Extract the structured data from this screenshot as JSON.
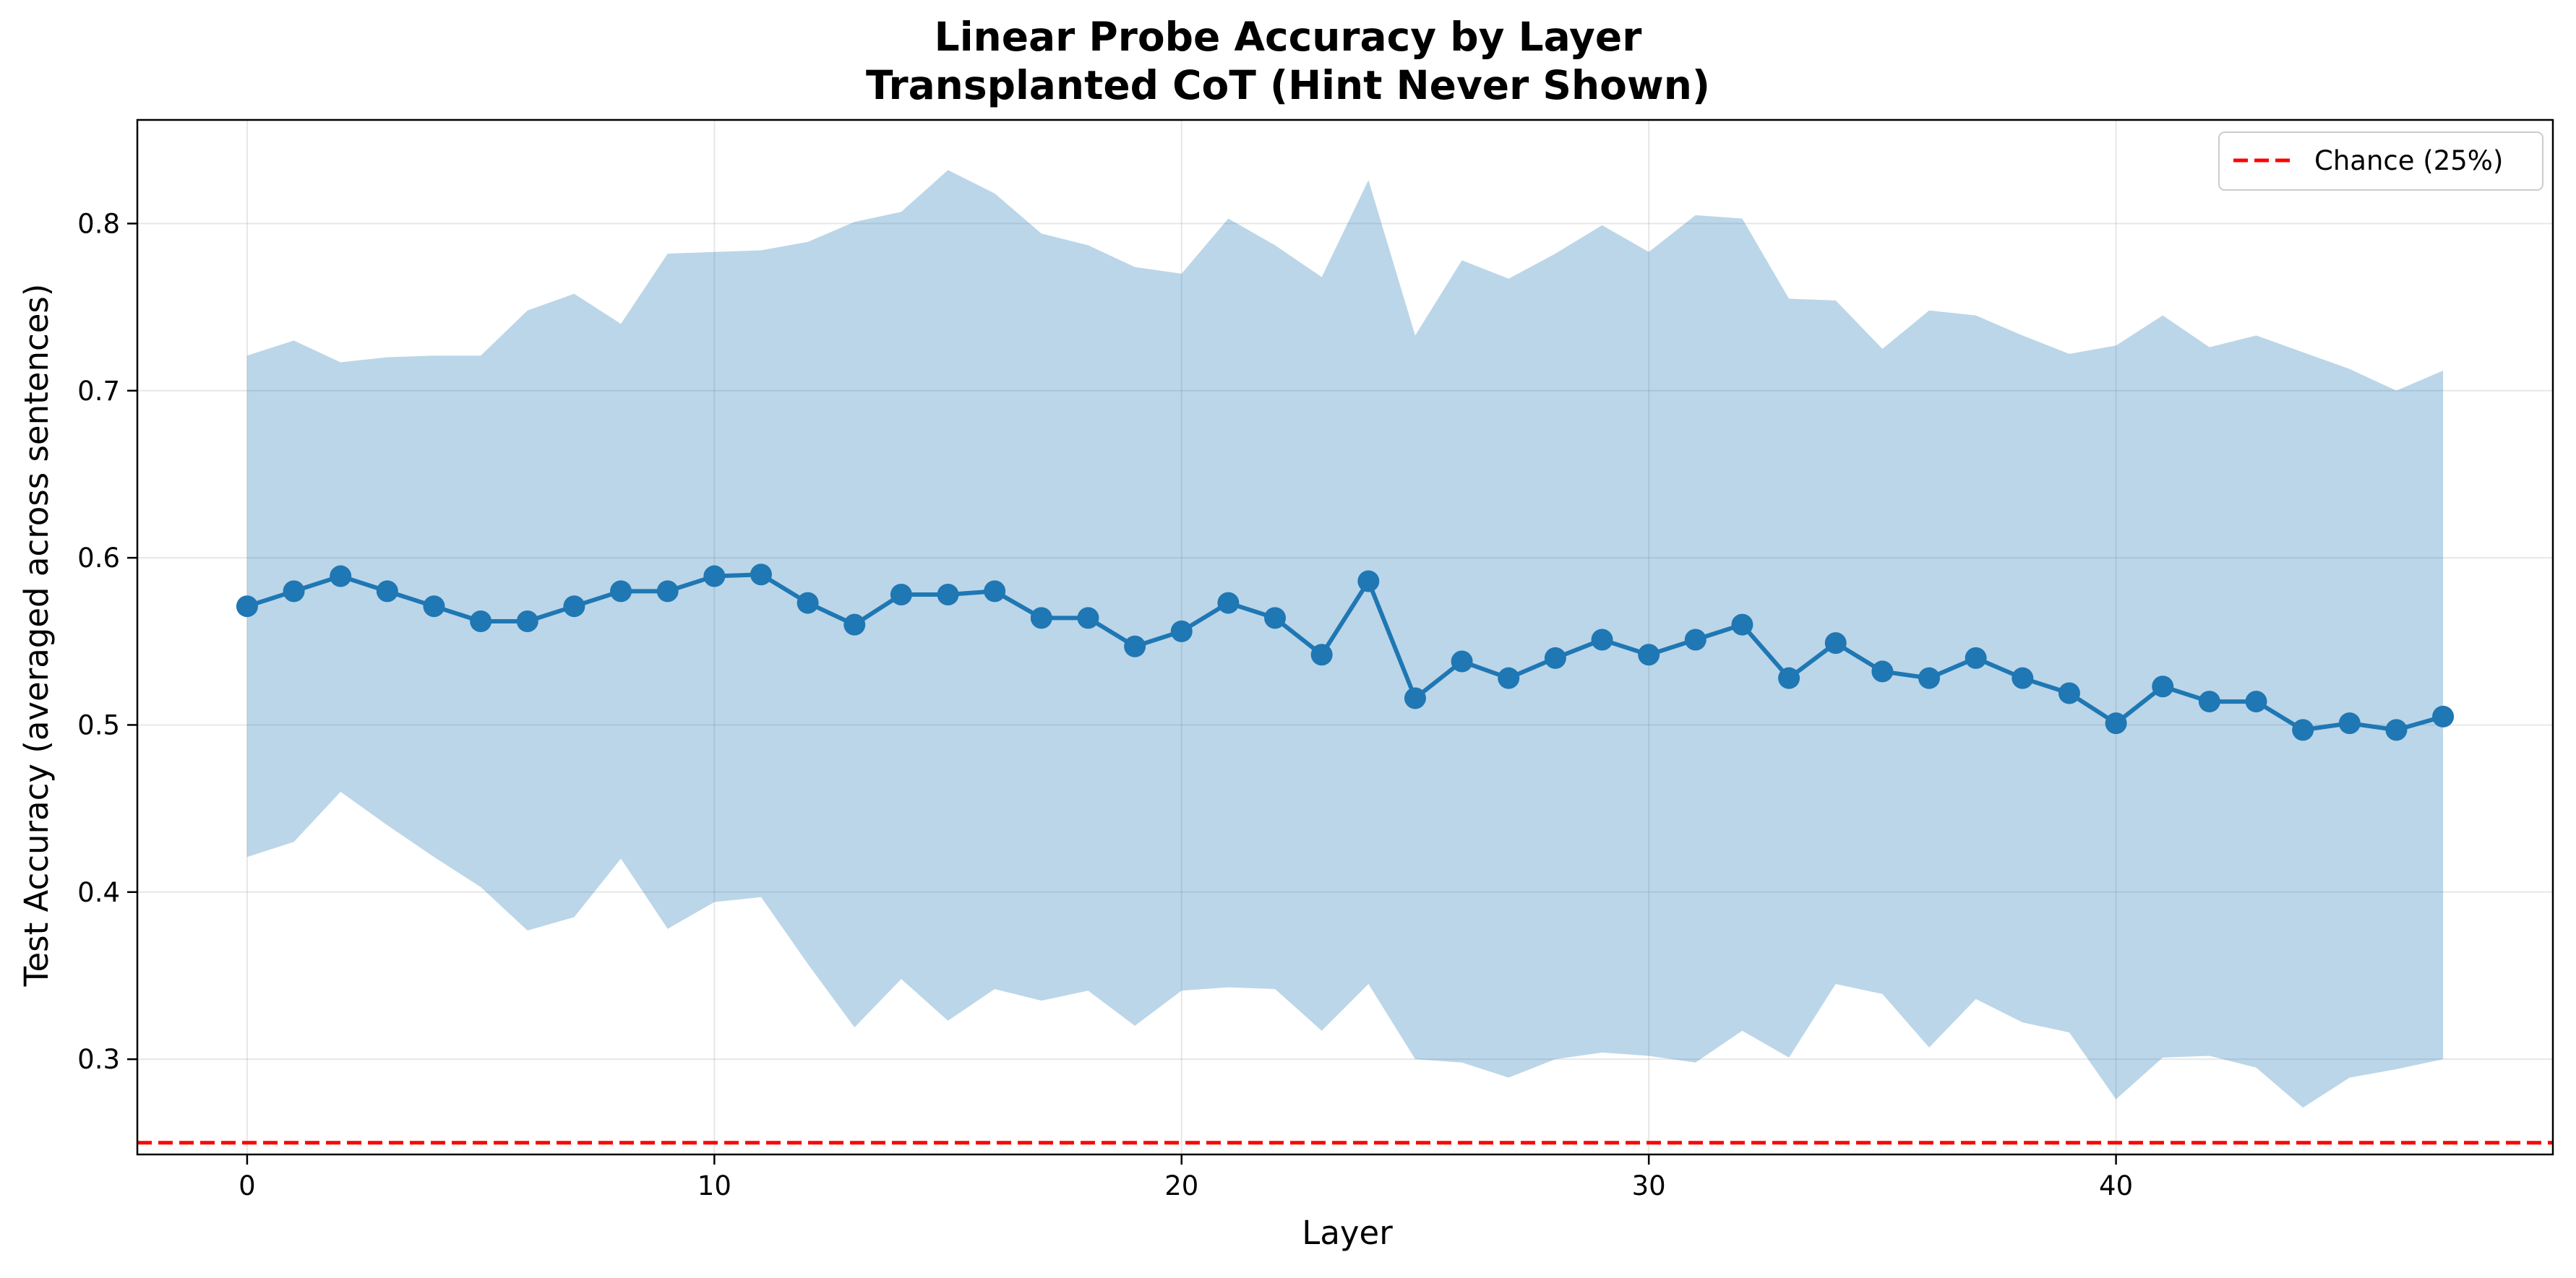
{
  "chart_data": {
    "type": "line",
    "title": "Linear Probe Accuracy by Layer",
    "subtitle": "Transplanted CoT (Hint Never Shown)",
    "xlabel": "Layer",
    "ylabel": "Test Accuracy (averaged across sentences)",
    "xlim": [
      -2.35,
      49.35
    ],
    "ylim": [
      0.243,
      0.862
    ],
    "x_ticks": [
      0,
      10,
      20,
      30,
      40
    ],
    "x_tick_labels": [
      "0",
      "10",
      "20",
      "30",
      "40"
    ],
    "y_ticks": [
      0.3,
      0.4,
      0.5,
      0.6,
      0.7,
      0.8
    ],
    "y_tick_labels": [
      "0.3",
      "0.4",
      "0.5",
      "0.6",
      "0.7",
      "0.8"
    ],
    "grid": true,
    "legend": {
      "placement": "upper-right",
      "entries": [
        "Chance (25%)"
      ]
    },
    "colors": {
      "series": "#1f77b4",
      "band": "#1f77b4",
      "chance": "#ff0000"
    },
    "x": [
      0,
      1,
      2,
      3,
      4,
      5,
      6,
      7,
      8,
      9,
      10,
      11,
      12,
      13,
      14,
      15,
      16,
      17,
      18,
      19,
      20,
      21,
      22,
      23,
      24,
      25,
      26,
      27,
      28,
      29,
      30,
      31,
      32,
      33,
      34,
      35,
      36,
      37,
      38,
      39,
      40,
      41,
      42,
      43,
      44,
      45,
      46,
      47
    ],
    "series": [
      {
        "values": [
          0.571,
          0.58,
          0.589,
          0.58,
          0.571,
          0.562,
          0.562,
          0.571,
          0.58,
          0.58,
          0.589,
          0.59,
          0.573,
          0.56,
          0.578,
          0.578,
          0.58,
          0.564,
          0.564,
          0.547,
          0.556,
          0.573,
          0.564,
          0.542,
          0.586,
          0.516,
          0.538,
          0.528,
          0.54,
          0.551,
          0.542,
          0.551,
          0.56,
          0.528,
          0.549,
          0.532,
          0.528,
          0.54,
          0.528,
          0.519,
          0.501,
          0.523,
          0.514,
          0.514,
          0.497,
          0.501,
          0.497,
          0.505
        ],
        "band_upper": [
          0.721,
          0.73,
          0.717,
          0.72,
          0.721,
          0.721,
          0.748,
          0.758,
          0.74,
          0.782,
          0.783,
          0.784,
          0.789,
          0.801,
          0.807,
          0.832,
          0.818,
          0.794,
          0.787,
          0.774,
          0.77,
          0.803,
          0.787,
          0.768,
          0.826,
          0.733,
          0.778,
          0.767,
          0.782,
          0.799,
          0.783,
          0.805,
          0.803,
          0.755,
          0.754,
          0.725,
          0.748,
          0.745,
          0.733,
          0.722,
          0.727,
          0.745,
          0.726,
          0.733,
          0.723,
          0.713,
          0.7,
          0.712
        ],
        "band_lower": [
          0.421,
          0.43,
          0.46,
          0.44,
          0.421,
          0.403,
          0.377,
          0.385,
          0.42,
          0.378,
          0.394,
          0.397,
          0.357,
          0.319,
          0.348,
          0.323,
          0.342,
          0.335,
          0.341,
          0.32,
          0.341,
          0.343,
          0.342,
          0.317,
          0.345,
          0.3,
          0.298,
          0.289,
          0.3,
          0.304,
          0.302,
          0.298,
          0.317,
          0.301,
          0.345,
          0.339,
          0.307,
          0.336,
          0.322,
          0.316,
          0.276,
          0.301,
          0.302,
          0.295,
          0.271,
          0.289,
          0.294,
          0.3
        ]
      }
    ],
    "chance_level": 0.25
  }
}
